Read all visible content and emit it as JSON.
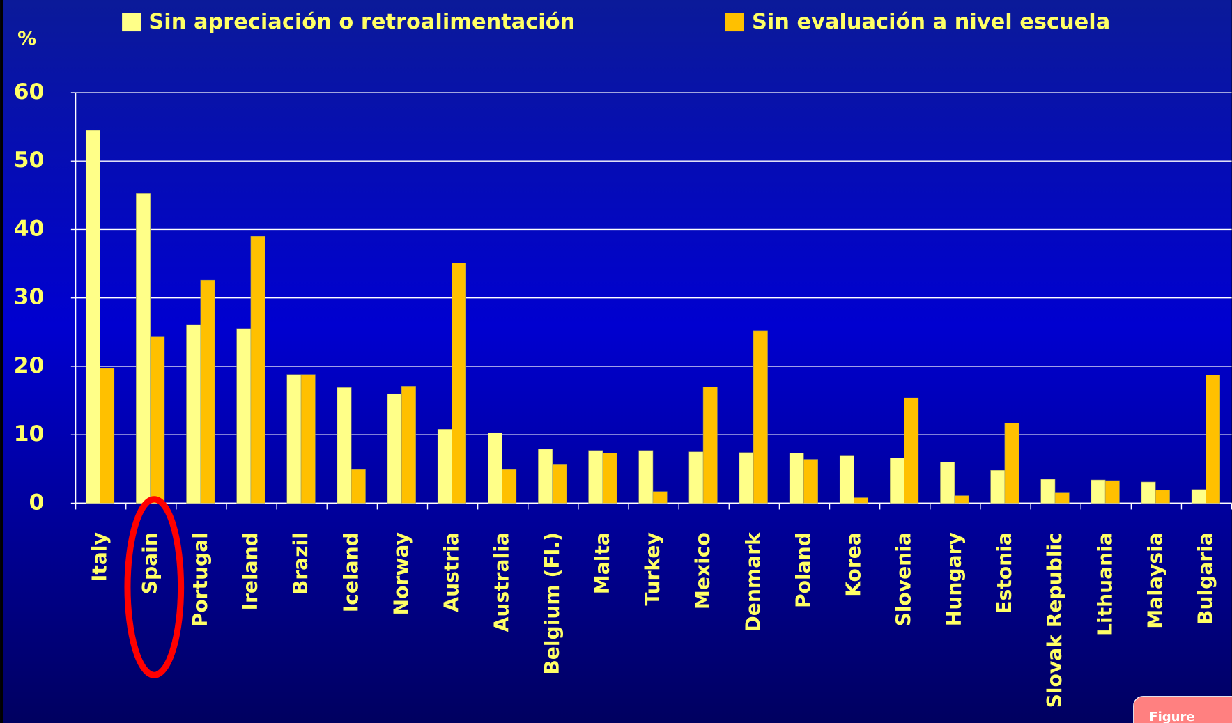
{
  "chart_data": {
    "type": "bar",
    "y_label": "%",
    "categories": [
      "Italy",
      "Spain",
      "Portugal",
      "Ireland",
      "Brazil",
      "Iceland",
      "Norway",
      "Austria",
      "Australia",
      "Belgium (Fl.)",
      "Malta",
      "Turkey",
      "Mexico",
      "Denmark",
      "Poland",
      "Korea",
      "Slovenia",
      "Hungary",
      "Estonia",
      "Slovak Republic",
      "Lithuania",
      "Malaysia",
      "Bulgaria"
    ],
    "series": [
      {
        "name": "Sin apreciación o retroalimentación",
        "color": "#ffff88",
        "values": [
          54.5,
          45.3,
          26.1,
          25.5,
          18.8,
          16.9,
          16.0,
          10.8,
          10.3,
          7.9,
          7.7,
          7.7,
          7.5,
          7.4,
          7.3,
          7.0,
          6.6,
          6.0,
          4.8,
          3.5,
          3.4,
          3.1,
          2.0
        ]
      },
      {
        "name": "Sin evaluación a nivel escuela",
        "color": "#ffc000",
        "values": [
          19.7,
          24.3,
          32.6,
          39.0,
          18.8,
          4.9,
          17.1,
          35.1,
          4.9,
          5.7,
          7.3,
          1.7,
          17.0,
          25.2,
          6.4,
          0.8,
          15.4,
          1.1,
          11.7,
          1.5,
          3.3,
          1.9,
          18.7
        ]
      }
    ],
    "ylim": [
      0,
      60
    ],
    "yticks": [
      0,
      10,
      20,
      30,
      40,
      50,
      60
    ],
    "grid": true,
    "legend_position": "top",
    "annotation": "Figure"
  }
}
